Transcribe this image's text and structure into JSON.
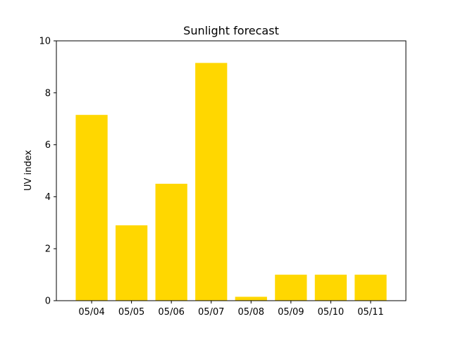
{
  "chart_data": {
    "type": "bar",
    "title": "Sunlight forecast",
    "xlabel": "",
    "ylabel": "UV index",
    "categories": [
      "05/04",
      "05/05",
      "05/06",
      "05/07",
      "05/08",
      "05/09",
      "05/10",
      "05/11"
    ],
    "values": [
      7.15,
      2.9,
      4.5,
      9.15,
      0.15,
      1.0,
      1.0,
      1.0
    ],
    "ylim": [
      0,
      10
    ],
    "yticks": [
      0,
      2,
      4,
      6,
      8,
      10
    ],
    "grid": false,
    "bar_color": "#FFD700"
  }
}
